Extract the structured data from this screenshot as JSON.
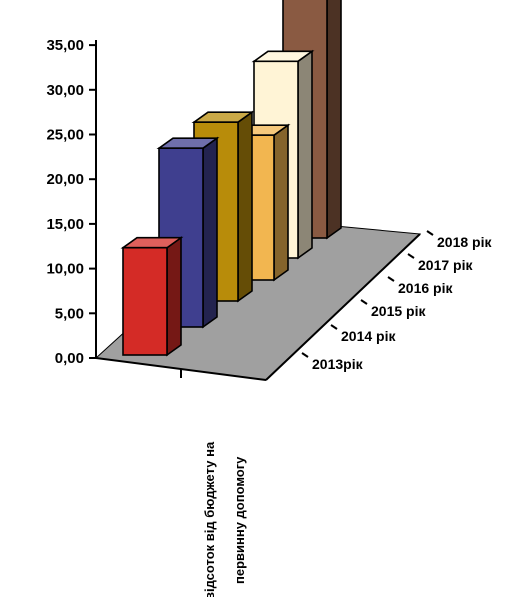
{
  "chart_data": {
    "type": "bar",
    "categories": [
      "відсоток від бюджету на первинну допомогу"
    ],
    "category_lines": [
      "відсоток від бюджету на",
      "первинну допомогу"
    ],
    "series": [
      {
        "name": "2013рік",
        "values": [
          12.0
        ],
        "color": "#d42b26"
      },
      {
        "name": "2014 рік",
        "values": [
          20.0
        ],
        "color": "#3f3f8f"
      },
      {
        "name": "2015 рік",
        "values": [
          20.0
        ],
        "color": "#b88c0a"
      },
      {
        "name": "2016 рік",
        "values": [
          16.2
        ],
        "color": "#f2b650"
      },
      {
        "name": "2017 рік",
        "values": [
          22.0
        ],
        "color": "#fff4d6"
      },
      {
        "name": "2018 рік",
        "values": [
          32.0
        ],
        "color": "#8a5a42"
      }
    ],
    "y_ticks": [
      "0,00",
      "5,00",
      "10,00",
      "15,00",
      "20,00",
      "25,00",
      "30,00",
      "35,00"
    ],
    "ylim": [
      0,
      35
    ],
    "floor_color": "#a0a0a0",
    "grid": false,
    "legend": "none"
  }
}
